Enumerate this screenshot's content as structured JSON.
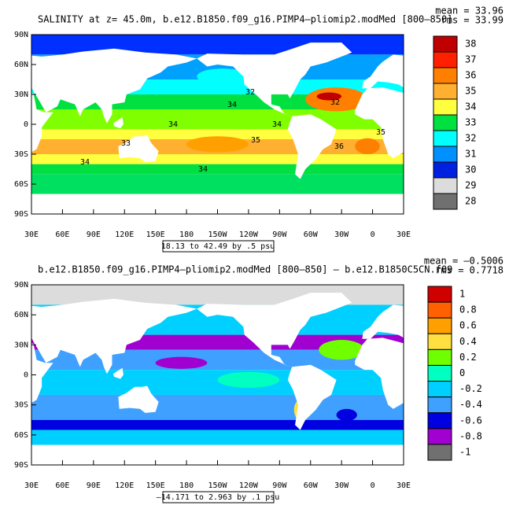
{
  "panels": [
    {
      "title": "SALINITY at z=  45.0m, b.e12.B1850.f09_g16.PIMP4–pliomip2.modMed [800–850]",
      "stats": [
        "mean = 33.96",
        "rms = 33.99"
      ],
      "yticks": [
        "90N",
        "60N",
        "30N",
        "0",
        "30S",
        "60S",
        "90S"
      ],
      "xticks": [
        "30E",
        "60E",
        "90E",
        "120E",
        "150E",
        "180",
        "150W",
        "120W",
        "90W",
        "60W",
        "30W",
        "0",
        "30E"
      ],
      "contour_labels": [
        "32",
        "34",
        "34",
        "33",
        "34",
        "35",
        "36",
        "35",
        "34",
        "34",
        "32"
      ],
      "range_note": "18.13 to 42.49 by .5 psu",
      "colorbar": {
        "labels": [
          38,
          37,
          36,
          35,
          34,
          33,
          32,
          31,
          30,
          29,
          28
        ],
        "colors": [
          "#c00000",
          "#ff2000",
          "#ff8000",
          "#ffb030",
          "#ffff40",
          "#00e040",
          "#00ffff",
          "#0090ff",
          "#0020e0",
          "#dcdcdc",
          "#707070"
        ]
      }
    },
    {
      "title": "b.e12.B1850.f09_g16.PIMP4–pliomip2.modMed [800–850] – b.e12.B1850C5CN.f09",
      "stats": [
        "mean = –0.5006",
        "rms = 0.7718"
      ],
      "yticks": [
        "90N",
        "60N",
        "30N",
        "0",
        "30S",
        "60S",
        "90S"
      ],
      "xticks": [
        "30E",
        "60E",
        "90E",
        "120E",
        "150E",
        "180",
        "150W",
        "120W",
        "90W",
        "60W",
        "30W",
        "0",
        "30E"
      ],
      "contour_labels": [],
      "range_note": "–14.171 to 2.963 by .1 psu",
      "colorbar": {
        "labels": [
          1,
          0.8,
          0.6,
          0.4,
          0.2,
          0,
          -0.2,
          -0.4,
          -0.6,
          -0.8,
          -1
        ],
        "colors": [
          "#d00000",
          "#ff6000",
          "#ffa000",
          "#ffe040",
          "#70ff00",
          "#00ffc0",
          "#00d0ff",
          "#40a0ff",
          "#0000e0",
          "#a000d0",
          "#707070"
        ]
      }
    }
  ]
}
